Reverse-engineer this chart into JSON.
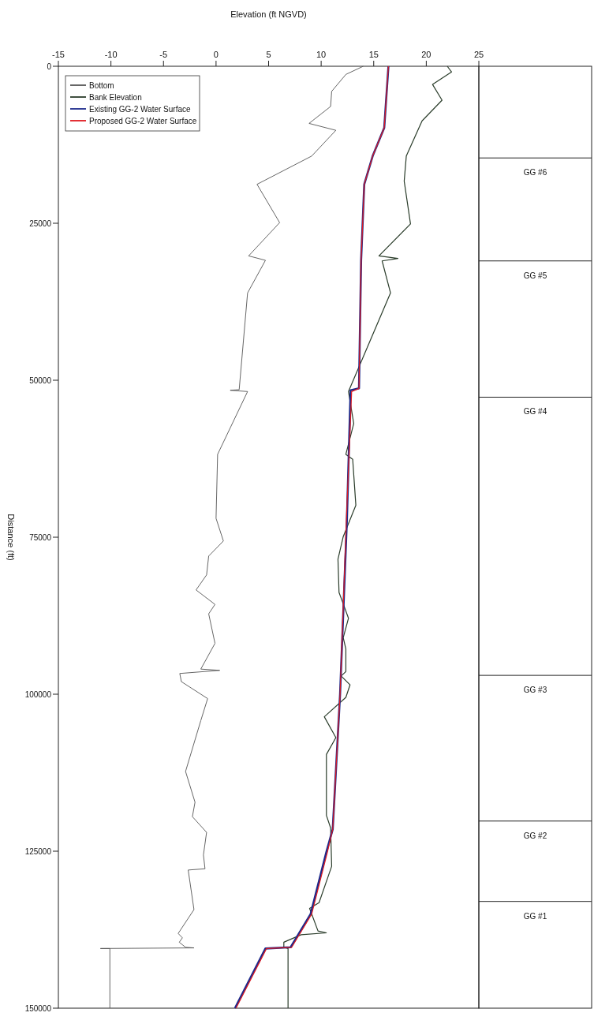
{
  "chart_data": {
    "type": "line",
    "xlabel": "Elevation (ft NGVD)",
    "ylabel": "Distance (ft)",
    "xlim": [
      -15,
      25
    ],
    "xticks": [
      -15,
      -10,
      -5,
      0,
      5,
      10,
      15,
      20,
      25
    ],
    "ylim": [
      150000,
      0
    ],
    "yticks": [
      0,
      25000,
      50000,
      75000,
      100000,
      125000,
      150000
    ],
    "grid": false,
    "legend": "top left",
    "marker": "none",
    "series": [
      {
        "name": "Bottom",
        "color": "#555555",
        "values": [
          0,
          1300,
          4000,
          6400,
          9100,
          10200,
          14300,
          18800,
          24900,
          30200,
          30900,
          36100,
          51500,
          51600,
          51800,
          61800,
          72000,
          75600,
          78000,
          81000,
          83400,
          85700,
          87200,
          91900,
          96000,
          96200,
          96700,
          98000,
          100700,
          104200,
          112300,
          117200,
          119500,
          122000,
          125600,
          127800,
          128000,
          134300,
          138100,
          138800,
          139500,
          140300,
          140400,
          140500,
          140500,
          150000
        ],
        "x": [
          14.0,
          12.35,
          11.0,
          10.9,
          8.85,
          11.4,
          9.1,
          3.9,
          6.05,
          3.1,
          4.7,
          3.0,
          2.2,
          1.35,
          3.0,
          0.15,
          0.0,
          0.7,
          -0.7,
          -0.9,
          -1.9,
          -0.1,
          -0.7,
          -0.1,
          -1.45,
          0.35,
          -3.45,
          -3.3,
          -0.8,
          -1.45,
          -2.9,
          -2.0,
          -2.25,
          -0.9,
          -1.2,
          -1.05,
          -2.65,
          -2.1,
          -3.6,
          -3.2,
          -3.5,
          -2.9,
          -2.1,
          -11.0,
          -10.1,
          -10.1
        ]
      },
      {
        "name": "Bank Elevation",
        "color": "#2b3d2b",
        "values": [
          0,
          900,
          2900,
          5400,
          8700,
          14300,
          18300,
          25100,
          30200,
          30600,
          31000,
          36100,
          51800,
          56900,
          61800,
          62600,
          69900,
          74900,
          78500,
          83800,
          85600,
          87900,
          91000,
          92800,
          96400,
          97100,
          98500,
          100500,
          103600,
          106900,
          109600,
          119300,
          121300,
          127400,
          133200,
          134100,
          137700,
          138000,
          138300,
          139500,
          140300,
          140500,
          150000
        ],
        "x": [
          22.0,
          22.4,
          20.6,
          21.5,
          19.6,
          18.1,
          17.9,
          18.5,
          15.5,
          17.3,
          15.8,
          16.6,
          12.6,
          13.1,
          12.35,
          13.0,
          13.3,
          12.1,
          11.6,
          11.7,
          12.1,
          12.6,
          12.1,
          12.35,
          12.35,
          11.9,
          12.75,
          12.35,
          10.3,
          11.4,
          10.5,
          10.5,
          10.9,
          11.0,
          9.8,
          8.9,
          9.7,
          10.5,
          8.1,
          6.45,
          6.45,
          6.85,
          6.85
        ]
      },
      {
        "name": "Existing GG-2 Water Surface",
        "color": "#1c2a8c",
        "values": [
          0,
          9800,
          14300,
          18800,
          30900,
          51300,
          51600,
          72200,
          100000,
          121500,
          125100,
          135000,
          140300,
          140500,
          150000
        ],
        "x": [
          16.4,
          16.0,
          14.9,
          14.1,
          13.8,
          13.6,
          12.8,
          12.45,
          11.8,
          11.1,
          10.5,
          9.0,
          7.1,
          4.7,
          1.8
        ]
      },
      {
        "name": "Proposed GG-2 Water Surface",
        "color": "#e0191f",
        "values": [
          0,
          9800,
          14300,
          18800,
          30900,
          51300,
          51800,
          72200,
          100000,
          121500,
          125100,
          135000,
          140300,
          140500,
          150000
        ],
        "x": [
          16.4,
          16.0,
          14.9,
          14.1,
          13.8,
          13.6,
          12.9,
          12.4,
          11.8,
          11.1,
          10.6,
          9.1,
          7.2,
          4.8,
          1.9
        ]
      }
    ],
    "ref_lines": [
      {
        "axis": "y",
        "value": 14600,
        "label": "GG #6"
      },
      {
        "axis": "y",
        "value": 31000,
        "label": "GG #5"
      },
      {
        "axis": "y",
        "value": 52700,
        "label": "GG #4"
      },
      {
        "axis": "y",
        "value": 97000,
        "label": "GG #3"
      },
      {
        "axis": "y",
        "value": 120200,
        "label": "GG #2"
      },
      {
        "axis": "y",
        "value": 133000,
        "label": "GG #1"
      }
    ]
  }
}
